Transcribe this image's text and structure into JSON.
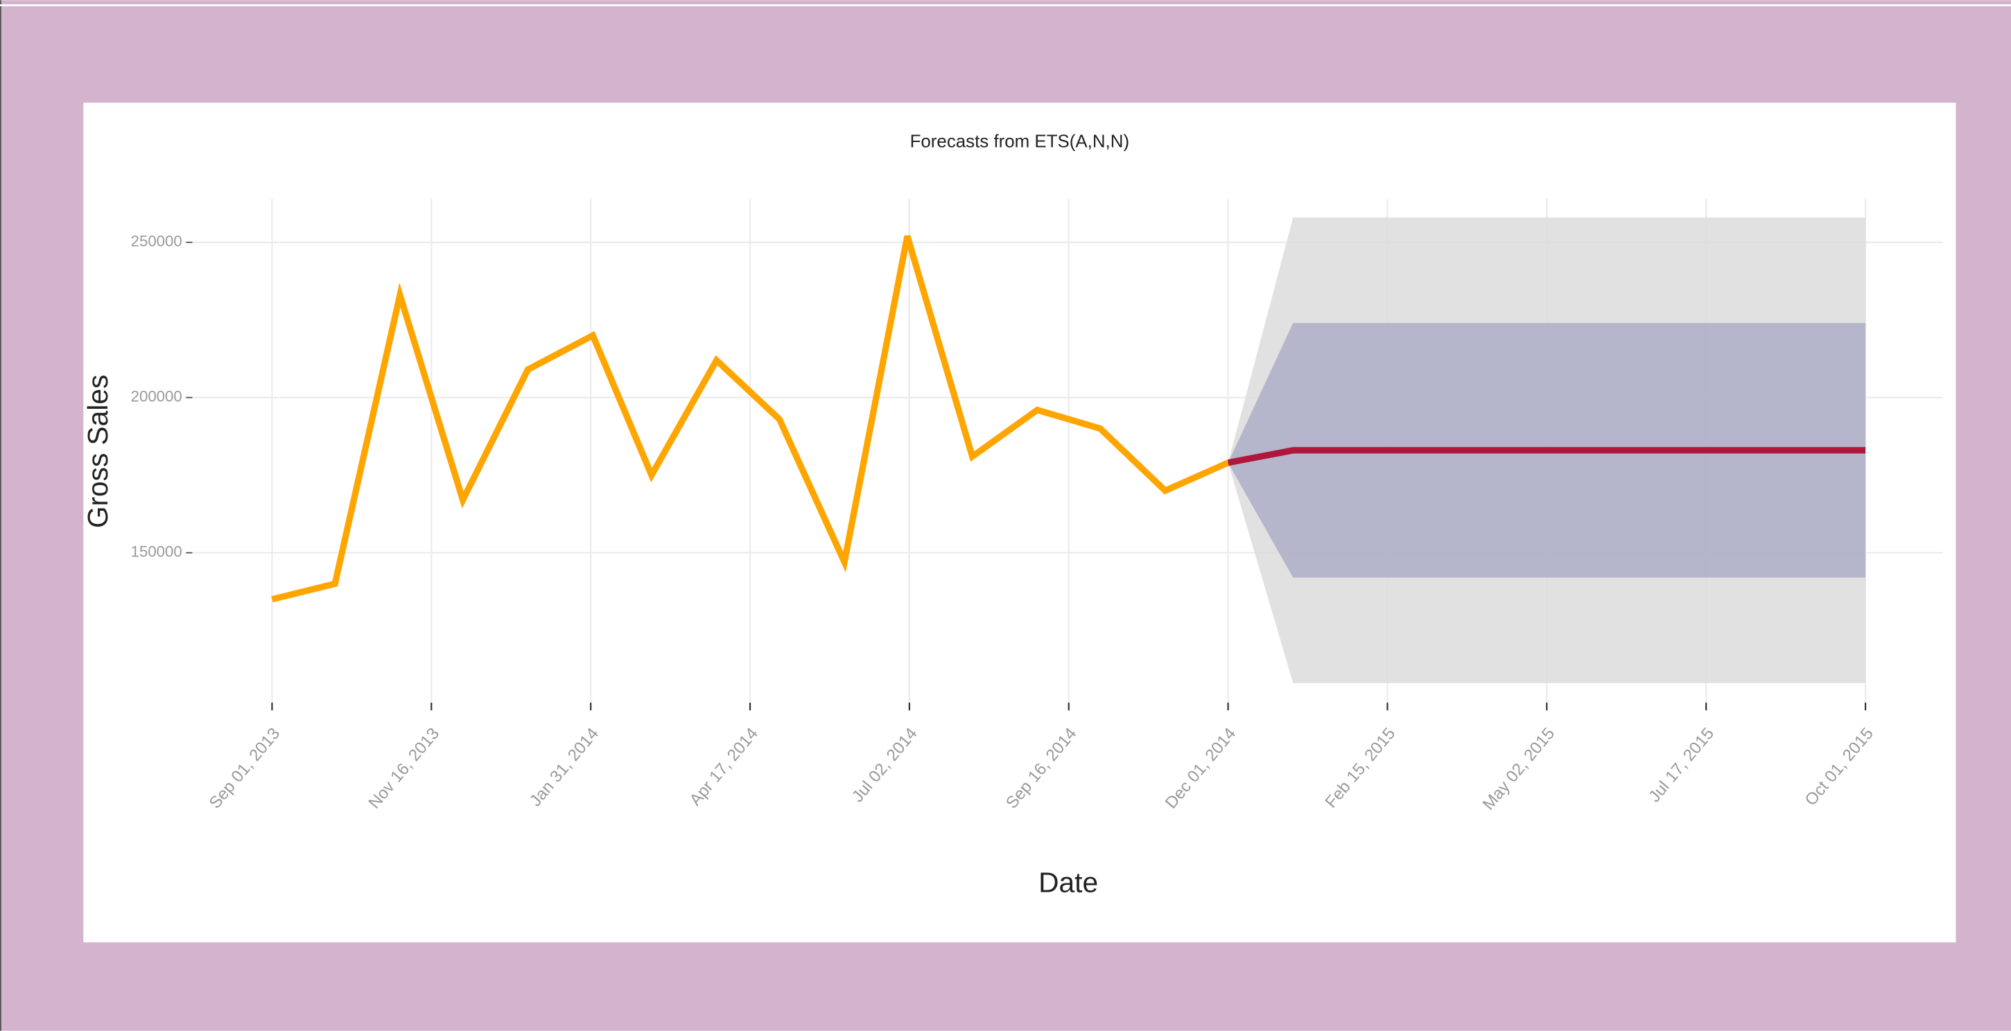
{
  "chart_data": {
    "type": "line",
    "title": "Forecasts from ETS(A,N,N)",
    "x_label": "Date",
    "y_label": "Gross Sales",
    "grid": true,
    "xlim": [
      "2013-07-25",
      "2015-11-07"
    ],
    "ylim": [
      101700,
      264000
    ],
    "yticks": [
      150000,
      200000,
      250000
    ],
    "xticks": [
      {
        "value": "2013-09-01",
        "label": "Sep 01, 2013"
      },
      {
        "value": "2013-11-16",
        "label": "Nov 16, 2013"
      },
      {
        "value": "2014-01-31",
        "label": "Jan 31, 2014"
      },
      {
        "value": "2014-04-17",
        "label": "Apr 17, 2014"
      },
      {
        "value": "2014-07-02",
        "label": "Jul 02, 2014"
      },
      {
        "value": "2014-09-16",
        "label": "Sep 16, 2014"
      },
      {
        "value": "2014-12-01",
        "label": "Dec 01, 2014"
      },
      {
        "value": "2015-02-15",
        "label": "Feb 15, 2015"
      },
      {
        "value": "2015-05-02",
        "label": "May 02, 2015"
      },
      {
        "value": "2015-07-17",
        "label": "Jul 17, 2015"
      },
      {
        "value": "2015-10-01",
        "label": "Oct 01, 2015"
      }
    ],
    "bands": [
      {
        "color": "#dcdcdc",
        "x": [
          "2014-12-01",
          "2015-01-01",
          "2015-02-01",
          "2015-03-01",
          "2015-04-01",
          "2015-05-01",
          "2015-06-01",
          "2015-07-01",
          "2015-08-01",
          "2015-09-01",
          "2015-10-01"
        ],
        "lower": [
          179000,
          108000,
          108000,
          108000,
          108000,
          108000,
          108000,
          108000,
          108000,
          108000,
          108000
        ],
        "upper": [
          179000,
          258000,
          258000,
          258000,
          258000,
          258000,
          258000,
          258000,
          258000,
          258000,
          258000
        ]
      },
      {
        "color": "#adadc8",
        "x": [
          "2014-12-01",
          "2015-01-01",
          "2015-02-01",
          "2015-03-01",
          "2015-04-01",
          "2015-05-01",
          "2015-06-01",
          "2015-07-01",
          "2015-08-01",
          "2015-09-01",
          "2015-10-01"
        ],
        "lower": [
          179000,
          142000,
          142000,
          142000,
          142000,
          142000,
          142000,
          142000,
          142000,
          142000,
          142000
        ],
        "upper": [
          179000,
          224000,
          224000,
          224000,
          224000,
          224000,
          224000,
          224000,
          224000,
          224000,
          224000
        ]
      }
    ],
    "series": [
      {
        "color": "#ffa500",
        "x": [
          "2013-09-01",
          "2013-10-01",
          "2013-11-01",
          "2013-12-01",
          "2014-01-01",
          "2014-02-01",
          "2014-03-01",
          "2014-04-01",
          "2014-05-01",
          "2014-06-01",
          "2014-07-01",
          "2014-08-01",
          "2014-09-01",
          "2014-10-01",
          "2014-11-01",
          "2014-12-01"
        ],
        "values": [
          135000,
          140000,
          233000,
          167000,
          209000,
          220000,
          175000,
          212000,
          193000,
          147000,
          252000,
          181000,
          196000,
          190000,
          170000,
          179000
        ]
      },
      {
        "color": "#b0173a",
        "x": [
          "2014-12-01",
          "2015-01-01",
          "2015-02-01",
          "2015-03-01",
          "2015-04-01",
          "2015-05-01",
          "2015-06-01",
          "2015-07-01",
          "2015-08-01",
          "2015-09-01",
          "2015-10-01"
        ],
        "values": [
          179000,
          183000,
          183000,
          183000,
          183000,
          183000,
          183000,
          183000,
          183000,
          183000,
          183000
        ]
      }
    ]
  }
}
